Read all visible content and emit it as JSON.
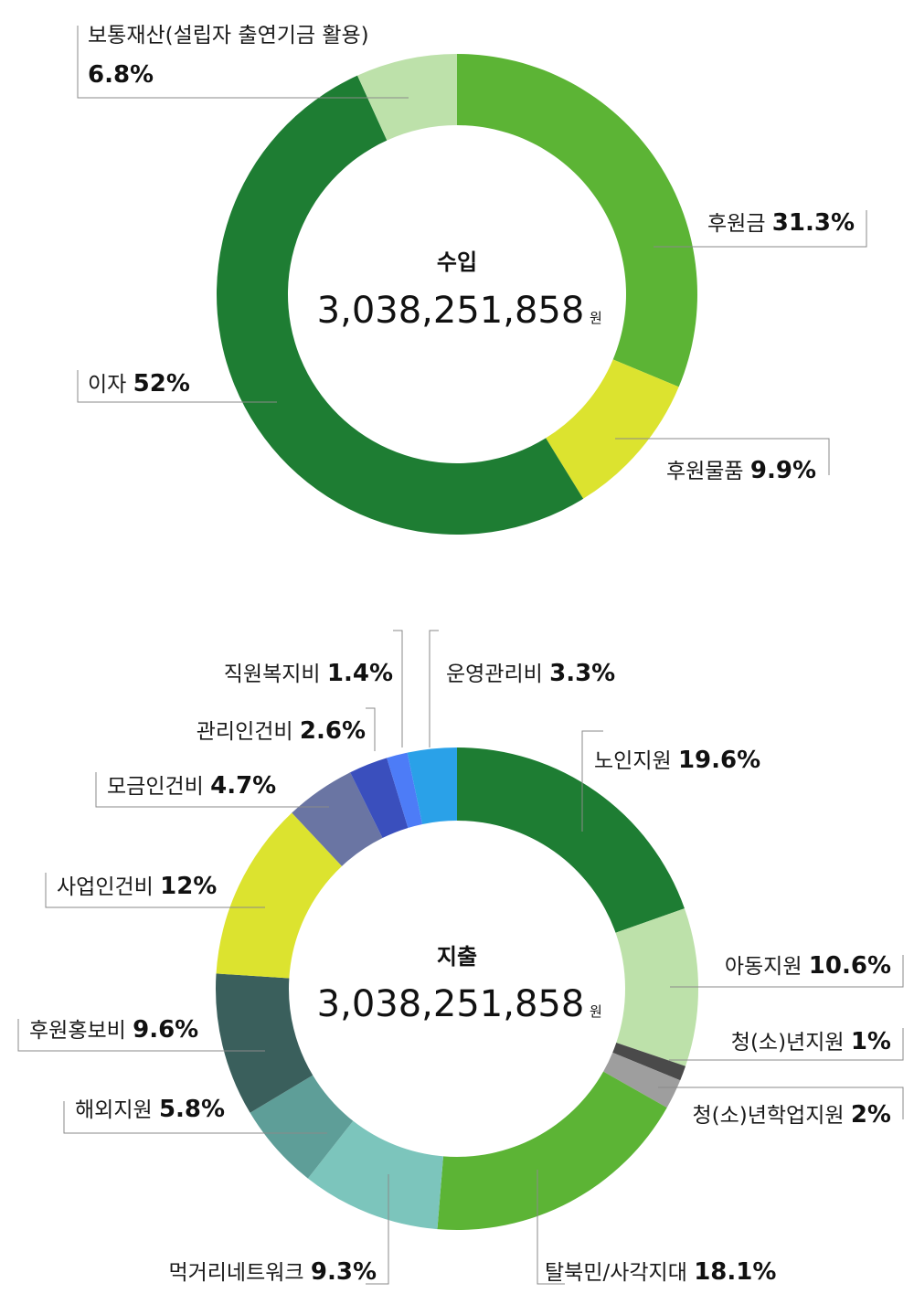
{
  "chart_data": [
    {
      "type": "pie",
      "center_title": "수입",
      "center_amount": "3,038,251,858",
      "center_unit": "원",
      "start": "12 o'clock, clockwise",
      "slices": [
        {
          "name": "후원금",
          "value": 31.3,
          "label": "31.3%",
          "color": "#5cb435"
        },
        {
          "name": "후원물품",
          "value": 9.9,
          "label": "9.9%",
          "color": "#dce32f"
        },
        {
          "name": "이자",
          "value": 52,
          "label": "52%",
          "color": "#1e7d33"
        },
        {
          "name": "보통재산(설립자 출연기금 활용)",
          "value": 6.8,
          "label": "6.8%",
          "color": "#bde1aa"
        }
      ]
    },
    {
      "type": "pie",
      "center_title": "지출",
      "center_amount": "3,038,251,858",
      "center_unit": "원",
      "start": "12 o'clock, clockwise",
      "slices": [
        {
          "name": "노인지원",
          "value": 19.6,
          "label": "19.6%",
          "color": "#1e7d33"
        },
        {
          "name": "아동지원",
          "value": 10.6,
          "label": "10.6%",
          "color": "#bde1aa"
        },
        {
          "name": "청(소)년지원",
          "value": 1,
          "label": "1%",
          "color": "#4a4a4a"
        },
        {
          "name": "청(소)년학업지원",
          "value": 2,
          "label": "2%",
          "color": "#9e9e9e"
        },
        {
          "name": "탈북민/사각지대",
          "value": 18.1,
          "label": "18.1%",
          "color": "#5cb435"
        },
        {
          "name": "먹거리네트워크",
          "value": 9.3,
          "label": "9.3%",
          "color": "#7cc5bc"
        },
        {
          "name": "해외지원",
          "value": 5.8,
          "label": "5.8%",
          "color": "#5e9e98"
        },
        {
          "name": "후원홍보비",
          "value": 9.6,
          "label": "9.6%",
          "color": "#3a5f5c"
        },
        {
          "name": "사업인건비",
          "value": 12,
          "label": "12%",
          "color": "#dce32f"
        },
        {
          "name": "모금인건비",
          "value": 4.7,
          "label": "4.7%",
          "color": "#6a75a3"
        },
        {
          "name": "관리인건비",
          "value": 2.6,
          "label": "2.6%",
          "color": "#3a4fbd"
        },
        {
          "name": "직원복지비",
          "value": 1.4,
          "label": "1.4%",
          "color": "#4d7cf7"
        },
        {
          "name": "운영관리비",
          "value": 3.3,
          "label": "3.3%",
          "color": "#2aa1e8"
        }
      ]
    }
  ]
}
